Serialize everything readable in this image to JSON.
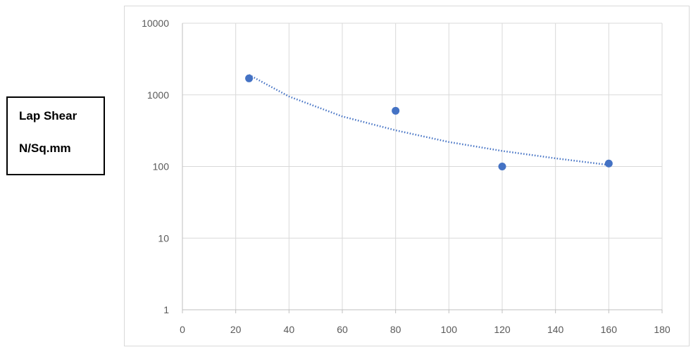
{
  "y_axis_label": {
    "line1": "Lap Shear",
    "line2": "N/Sq.mm"
  },
  "chart_data": {
    "type": "scatter",
    "title": "",
    "xlabel": "",
    "ylabel": "Lap Shear N/Sq.mm",
    "xlim": [
      0,
      180
    ],
    "ylim": [
      1,
      10000
    ],
    "y_scale": "log",
    "grid": true,
    "legend": "none",
    "x_ticks": [
      0,
      20,
      40,
      60,
      80,
      100,
      120,
      140,
      160,
      180
    ],
    "x_tick_labels": [
      "0",
      "20",
      "40",
      "60",
      "80",
      "100",
      "120",
      "140",
      "160",
      "180"
    ],
    "y_ticks": [
      1,
      10,
      100,
      1000,
      10000
    ],
    "y_tick_labels": [
      "1",
      "10",
      "100",
      "1000",
      "10000"
    ],
    "series": [
      {
        "x": [
          25,
          80,
          120,
          160
        ],
        "y": [
          1700,
          600,
          100,
          110
        ],
        "color": "#4472c4"
      }
    ],
    "trendline": {
      "style": "dotted",
      "color": "#4472c4",
      "x": [
        25,
        40,
        60,
        80,
        100,
        120,
        140,
        160
      ],
      "y": [
        1900,
        950,
        500,
        320,
        220,
        165,
        130,
        105
      ]
    }
  }
}
